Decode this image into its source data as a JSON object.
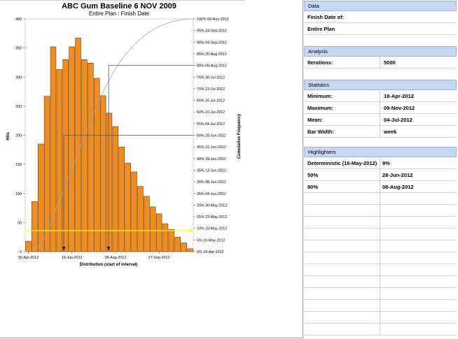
{
  "chart_data": {
    "type": "bar",
    "title": "ABC Gum Baseline 6 NOV 2009",
    "subtitle": "Entire Plan : Finish Date",
    "xlabel": "Distribution (start of interval)",
    "ylabel": "Hits",
    "y2label": "Cumulative Frequency",
    "ylim": [
      0,
      400
    ],
    "yticks": [
      0,
      50,
      100,
      150,
      200,
      250,
      300,
      350,
      400
    ],
    "x_tick_labels": [
      {
        "label": "30-Apr-2012",
        "bin": 0
      },
      {
        "label": "19-Jun-2012",
        "bin": 7
      },
      {
        "label": "08-Aug-2012",
        "bin": 14
      },
      {
        "label": "27-Sep-2012",
        "bin": 21
      }
    ],
    "values": [
      18,
      86,
      185,
      267,
      352,
      313,
      330,
      352,
      367,
      330,
      324,
      298,
      268,
      238,
      215,
      180,
      152,
      137,
      112,
      95,
      77,
      65,
      48,
      38,
      25,
      15,
      5
    ],
    "cumulative_ticks": [
      {
        "pct": "100%",
        "date": "09-Nov-2012"
      },
      {
        "pct": "95%",
        "date": "24-Sep-2012"
      },
      {
        "pct": "90%",
        "date": "04-Sep-2012"
      },
      {
        "pct": "85%",
        "date": "20-Aug-2012"
      },
      {
        "pct": "80%",
        "date": "08-Aug-2012"
      },
      {
        "pct": "75%",
        "date": "30-Jul-2012"
      },
      {
        "pct": "70%",
        "date": "23-Jul-2012"
      },
      {
        "pct": "65%",
        "date": "16-Jul-2012"
      },
      {
        "pct": "60%",
        "date": "10-Jul-2012"
      },
      {
        "pct": "55%",
        "date": "04-Jul-2012"
      },
      {
        "pct": "50%",
        "date": "28-Jun-2012"
      },
      {
        "pct": "45%",
        "date": "22-Jun-2012"
      },
      {
        "pct": "40%",
        "date": "18-Jun-2012"
      },
      {
        "pct": "35%",
        "date": "13-Jun-2012"
      },
      {
        "pct": "30%",
        "date": "08-Jun-2012"
      },
      {
        "pct": "25%",
        "date": "04-Jun-2012"
      },
      {
        "pct": "20%",
        "date": "30-May-2012"
      },
      {
        "pct": "15%",
        "date": "23-May-2012"
      },
      {
        "pct": "10%",
        "date": "18-May-2012"
      },
      {
        "pct": "5%",
        "date": "10-May-2012"
      },
      {
        "pct": "0%",
        "date": "18-Apr-2012"
      }
    ],
    "highlighters": [
      {
        "name": "50%",
        "pct": 50,
        "bin": 6.2
      },
      {
        "name": "80%",
        "pct": 80,
        "bin": 13.4
      },
      {
        "name": "Deterministic",
        "pct": 9
      }
    ],
    "colors": {
      "bar": "#f28c1c",
      "bar_stroke": "#4a2a05",
      "cumulative": "#a8a8a8",
      "deterministic": "#ffff00",
      "guide": "#555555"
    }
  },
  "panel": {
    "data": {
      "header": "Data",
      "finish_label": "Finish Date of:",
      "plan_label": "Entire Plan"
    },
    "analysis": {
      "header": "Analysis",
      "iterations_label": "Iterations:",
      "iterations_value": "5000"
    },
    "statistics": {
      "header": "Statistics",
      "rows": [
        {
          "label": "Minimum:",
          "value": "18-Apr-2012"
        },
        {
          "label": "Maximum:",
          "value": "09-Nov-2012"
        },
        {
          "label": "Mean:",
          "value": "04-Jul-2012"
        },
        {
          "label": "Bar Width:",
          "value": "week"
        }
      ]
    },
    "highlighters": {
      "header": "Highlighters",
      "rows": [
        {
          "label": "Deterministic (16-May-2012)",
          "value": "9%"
        },
        {
          "label": "50%",
          "value": "28-Jun-2012"
        },
        {
          "label": "80%",
          "value": "08-Aug-2012"
        }
      ]
    },
    "colors": {
      "header_bg": "#c6d9f3"
    }
  }
}
